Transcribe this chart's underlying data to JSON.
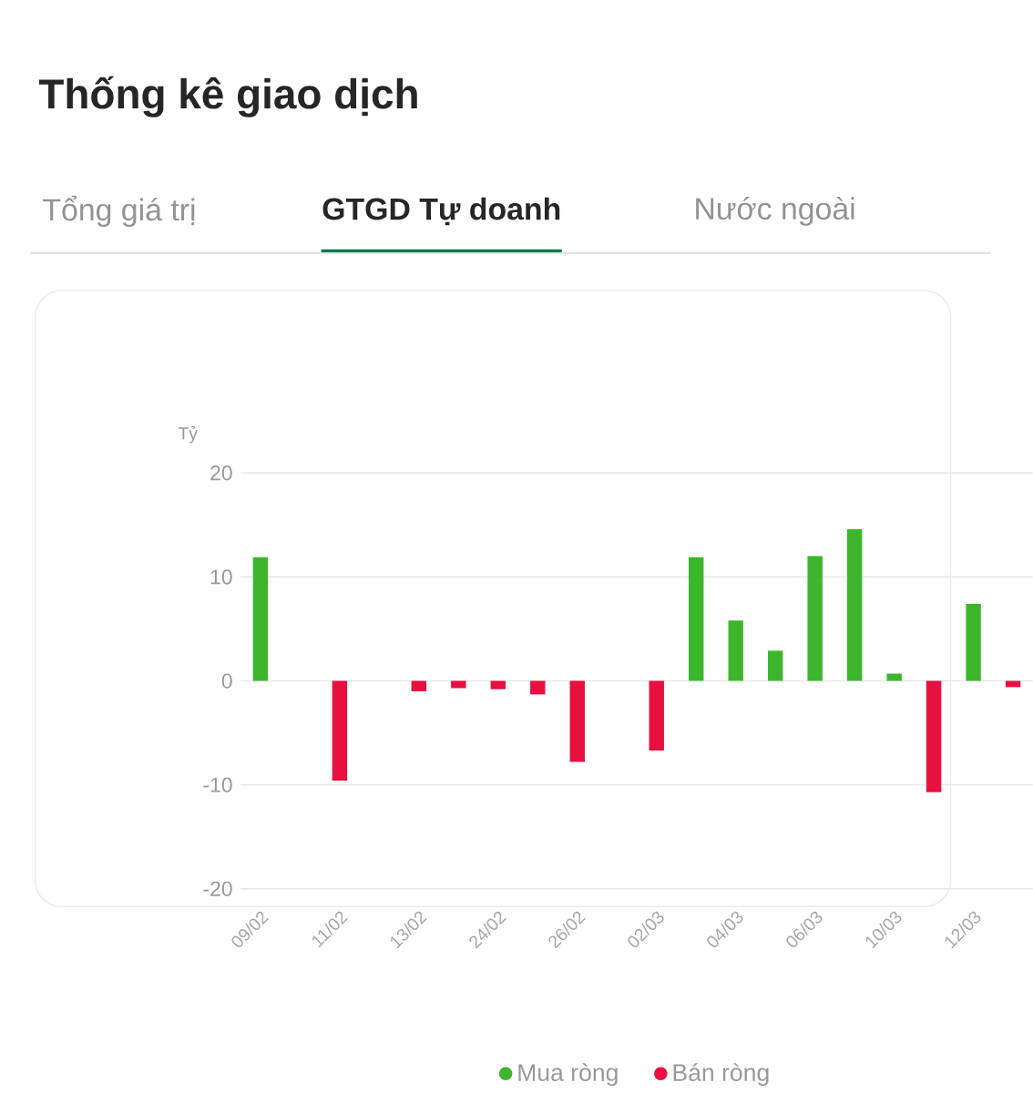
{
  "chart_data": {
    "type": "bar",
    "title": "Thống kê giao dịch",
    "subtitle": "GTGD Tự doanh",
    "annotations": [
      "Tổng giá trị",
      "Nước ngoài"
    ],
    "ylabel": "Tỷ",
    "categories": [
      "09/02",
      null,
      "11/02",
      null,
      "13/02",
      null,
      "24/02",
      null,
      "26/02",
      null,
      "02/03",
      null,
      "04/03",
      null,
      "06/03",
      null,
      "10/03",
      null,
      "12/03",
      null
    ],
    "series": [
      {
        "name": "Mua ròng",
        "color": "#3db62e",
        "values": [
          11.9,
          null,
          null,
          null,
          null,
          null,
          null,
          null,
          null,
          null,
          null,
          11.9,
          5.8,
          2.9,
          12.0,
          14.6,
          0.7,
          null,
          7.4,
          null
        ]
      },
      {
        "name": "Bán ròng",
        "color": "#e8103f",
        "values": [
          null,
          null,
          -9.6,
          null,
          -1.0,
          -0.7,
          -0.8,
          -1.3,
          -7.8,
          null,
          -6.7,
          null,
          null,
          null,
          null,
          null,
          null,
          -10.7,
          null,
          -0.6
        ]
      }
    ],
    "ylim": [
      -20,
      20
    ],
    "yticks": [
      -20,
      -10,
      0,
      10,
      20
    ],
    "grid": "y",
    "legend": "bottom"
  }
}
